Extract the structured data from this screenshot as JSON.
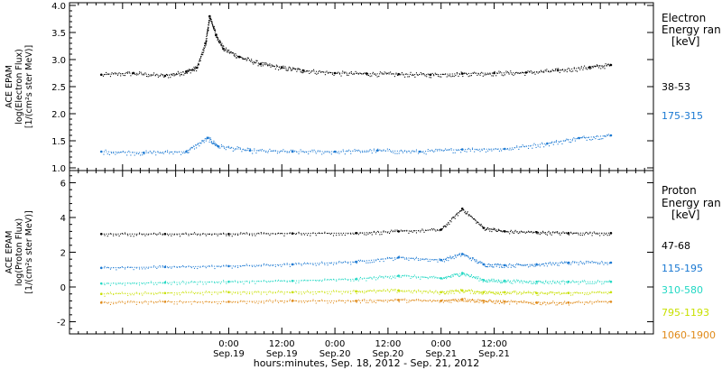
{
  "chart_data": [
    {
      "type": "scatter",
      "panel": "electron",
      "ylabel_lines": [
        "ACE EPAM",
        "log(Electron Flux)",
        "[1/(cm²s ster MeV)]"
      ],
      "ylim": [
        0.95,
        4.05
      ],
      "yticks": [
        "1.0",
        "1.5",
        "2.0",
        "2.5",
        "3.0",
        "3.5",
        "4.0"
      ],
      "ytick_values": [
        1.0,
        1.5,
        2.0,
        2.5,
        3.0,
        3.5,
        4.0
      ],
      "legend_title": [
        "Electron",
        "Energy ran",
        "[keV]"
      ],
      "series": [
        {
          "name": "38-53",
          "color": "#000000",
          "x": [
            -1.2,
            -0.9,
            -0.6,
            -0.4,
            -0.3,
            -0.22,
            -0.18,
            -0.12,
            -0.05,
            0.1,
            0.3,
            0.5,
            0.7,
            1.0,
            1.3,
            1.6,
            1.9,
            2.2,
            2.5,
            2.8,
            3.1,
            3.4,
            3.6
          ],
          "y": [
            2.72,
            2.75,
            2.7,
            2.78,
            2.85,
            3.3,
            3.8,
            3.45,
            3.2,
            3.05,
            2.92,
            2.85,
            2.8,
            2.75,
            2.74,
            2.73,
            2.72,
            2.74,
            2.75,
            2.76,
            2.8,
            2.86,
            2.9
          ]
        },
        {
          "name": "175-315",
          "color": "#1a78d2",
          "x": [
            -1.2,
            -0.8,
            -0.4,
            -0.2,
            -0.1,
            0.2,
            0.6,
            1.0,
            1.4,
            1.8,
            2.2,
            2.6,
            3.0,
            3.3,
            3.6
          ],
          "y": [
            1.3,
            1.28,
            1.3,
            1.55,
            1.4,
            1.32,
            1.3,
            1.3,
            1.32,
            1.3,
            1.34,
            1.35,
            1.45,
            1.55,
            1.6
          ]
        }
      ]
    },
    {
      "type": "scatter",
      "panel": "proton",
      "ylabel_lines": [
        "ACE EPAM",
        "log(Proton Flux)",
        "[1/(cm²s ster MeV)]"
      ],
      "ylim": [
        -2.7,
        6.7
      ],
      "yticks": [
        "-2",
        "0",
        "2",
        "4",
        "6"
      ],
      "ytick_values": [
        -2,
        0,
        2,
        4,
        6
      ],
      "legend_title": [
        "Proton",
        "Energy ran",
        "[keV]"
      ],
      "series": [
        {
          "name": "47-68",
          "color": "#000000",
          "x": [
            -1.2,
            -0.6,
            0.0,
            0.6,
            1.2,
            1.6,
            2.0,
            2.2,
            2.4,
            2.6,
            2.9,
            3.2,
            3.6
          ],
          "y": [
            3.05,
            3.05,
            3.05,
            3.08,
            3.1,
            3.2,
            3.3,
            4.5,
            3.4,
            3.2,
            3.15,
            3.1,
            3.1
          ]
        },
        {
          "name": "115-195",
          "color": "#1a78d2",
          "x": [
            -1.2,
            -0.6,
            0.0,
            0.6,
            1.2,
            1.6,
            2.0,
            2.2,
            2.4,
            2.6,
            2.9,
            3.2,
            3.6
          ],
          "y": [
            1.1,
            1.15,
            1.2,
            1.3,
            1.45,
            1.7,
            1.55,
            1.9,
            1.3,
            1.25,
            1.3,
            1.4,
            1.4
          ]
        },
        {
          "name": "310-580",
          "color": "#22d8c4",
          "x": [
            -1.2,
            -0.6,
            0.0,
            0.6,
            1.2,
            1.6,
            2.0,
            2.2,
            2.4,
            2.6,
            2.9,
            3.2,
            3.6
          ],
          "y": [
            0.2,
            0.25,
            0.3,
            0.35,
            0.45,
            0.65,
            0.5,
            0.8,
            0.4,
            0.35,
            0.3,
            0.3,
            0.3
          ]
        },
        {
          "name": "795-1193",
          "color": "#c8e000",
          "x": [
            -1.2,
            -0.6,
            0.0,
            0.6,
            1.2,
            1.6,
            2.0,
            2.2,
            2.4,
            2.6,
            2.9,
            3.2,
            3.6
          ],
          "y": [
            -0.4,
            -0.35,
            -0.3,
            -0.3,
            -0.25,
            -0.2,
            -0.3,
            -0.2,
            -0.3,
            -0.3,
            -0.35,
            -0.35,
            -0.3
          ]
        },
        {
          "name": "1060-1900",
          "color": "#e08a18",
          "x": [
            -1.2,
            -0.6,
            0.0,
            0.6,
            1.2,
            1.6,
            2.0,
            2.2,
            2.4,
            2.6,
            2.9,
            3.2,
            3.6
          ],
          "y": [
            -0.9,
            -0.85,
            -0.85,
            -0.8,
            -0.8,
            -0.75,
            -0.8,
            -0.7,
            -0.8,
            -0.85,
            -0.9,
            -0.9,
            -0.85
          ]
        }
      ]
    }
  ],
  "x_axis": {
    "unit": "days relative to Sep.19 0:00 UT, 2012",
    "xlim": [
      -1.5,
      4.0
    ],
    "ticks": [
      {
        "value": 0.0,
        "time": "0:00",
        "date": "Sep.19"
      },
      {
        "value": 0.5,
        "time": "12:00",
        "date": "Sep.19"
      },
      {
        "value": 1.0,
        "time": "0:00",
        "date": "Sep.20"
      },
      {
        "value": 1.5,
        "time": "12:00",
        "date": "Sep.20"
      },
      {
        "value": 2.0,
        "time": "0:00",
        "date": "Sep.21"
      },
      {
        "value": 2.5,
        "time": "12:00",
        "date": "Sep.21"
      }
    ],
    "label": "hours:minutes, Sep. 18, 2012 - Sep. 21, 2012"
  }
}
